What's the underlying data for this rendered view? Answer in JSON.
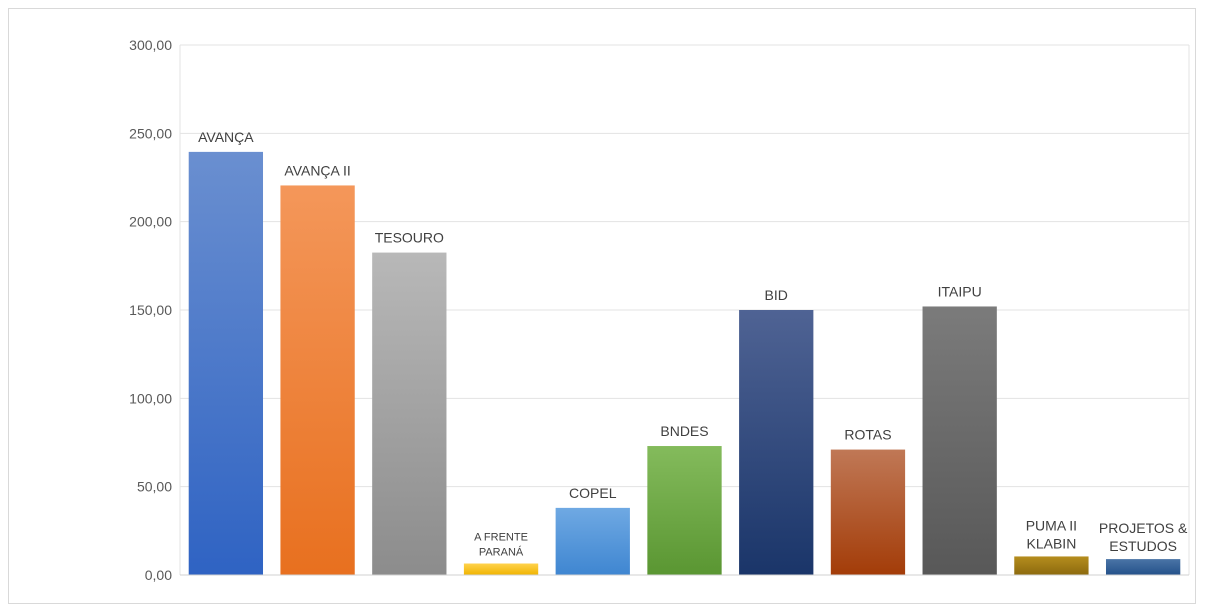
{
  "chart_data": {
    "type": "bar",
    "categories": [
      "AVANÇA",
      "AVANÇA II",
      "TESOURO",
      "A FRENTE PARANÁ",
      "COPEL",
      "BNDES",
      "BID",
      "ROTAS",
      "ITAIPU",
      "PUMA II KLABIN",
      "PROJETOS & ESTUDOS"
    ],
    "values": [
      239.5,
      220.5,
      182.5,
      6.5,
      38.0,
      73.0,
      150.0,
      71.0,
      152.0,
      10.5,
      9.0
    ],
    "title": "",
    "xlabel": "",
    "ylabel": "",
    "ylim": [
      0,
      300
    ],
    "yticks": [
      0,
      50,
      100,
      150,
      200,
      250,
      300
    ],
    "ytick_labels": [
      "0,00",
      "50,00",
      "100,00",
      "150,00",
      "200,00",
      "250,00",
      "300,00"
    ],
    "grid": true,
    "legend": "none",
    "data_labels": "category names above bars",
    "colors": [
      [
        "#6a8fd0",
        "#2f63c3"
      ],
      [
        "#f4975a",
        "#e8701f"
      ],
      [
        "#b8b8b8",
        "#8c8c8c"
      ],
      [
        "#ffd24d",
        "#f0b400"
      ],
      [
        "#6fa9e3",
        "#3f86d1"
      ],
      [
        "#84bb5c",
        "#5a9632"
      ],
      [
        "#4f6394",
        "#1a3569"
      ],
      [
        "#c07856",
        "#a33c08"
      ],
      [
        "#7b7b7b",
        "#585858"
      ],
      [
        "#b58d1e",
        "#8c6a0e"
      ],
      [
        "#4a74a6",
        "#24518a"
      ]
    ]
  }
}
